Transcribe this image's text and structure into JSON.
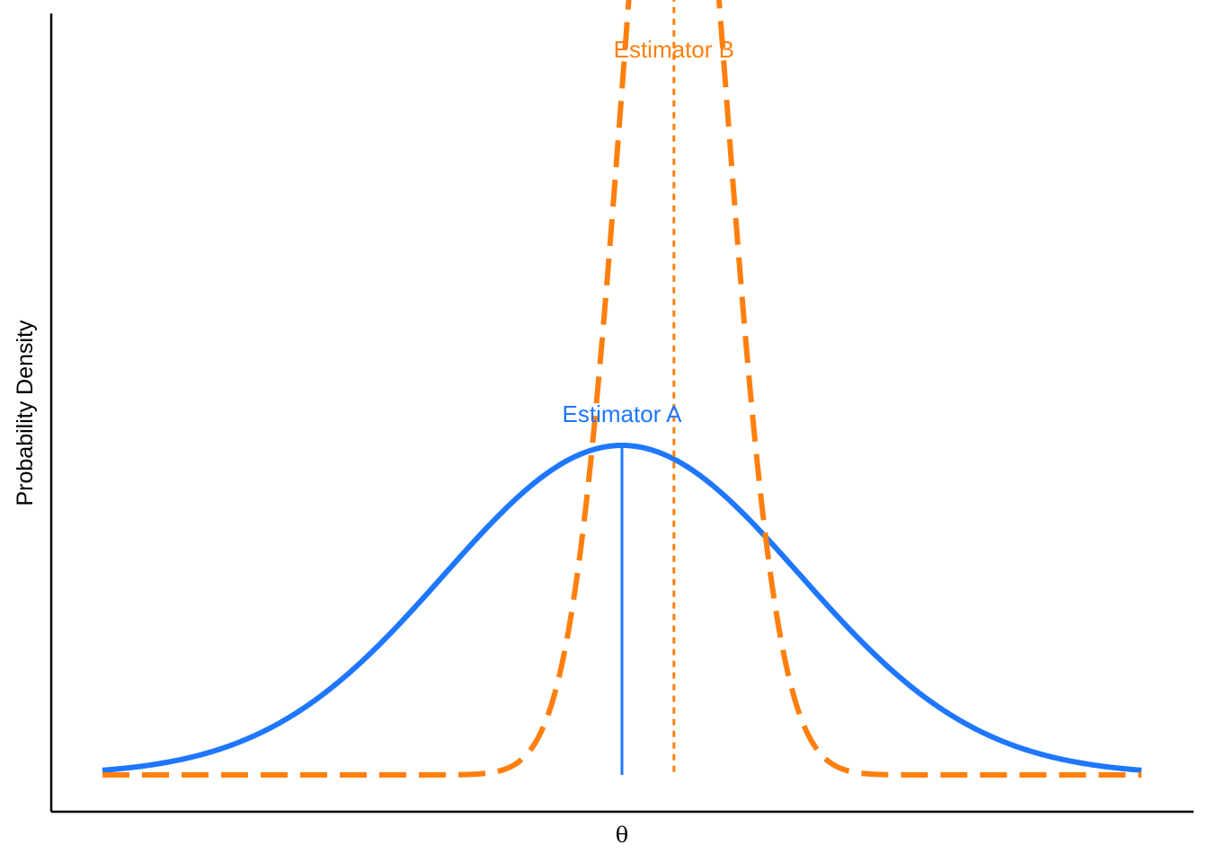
{
  "chart_data": {
    "type": "line",
    "title": "",
    "xlabel": "θ",
    "ylabel": "Probability Density",
    "x_tick_labels": [],
    "y_tick_labels": [],
    "xlim": [
      -3.5,
      3.5
    ],
    "ylim": [
      0,
      1.06
    ],
    "grid": false,
    "legend": "none",
    "series": [
      {
        "name": "Estimator A",
        "distribution": "normal",
        "mean": 0.0,
        "sd": 1.2,
        "color": "#1f77ff",
        "line_style": "solid",
        "mean_marker_style": "solid"
      },
      {
        "name": "Estimator B",
        "distribution": "normal",
        "mean": 0.35,
        "sd": 0.35,
        "color": "#ff7f0e",
        "line_style": "dashed",
        "mean_marker_style": "dotted"
      }
    ]
  }
}
